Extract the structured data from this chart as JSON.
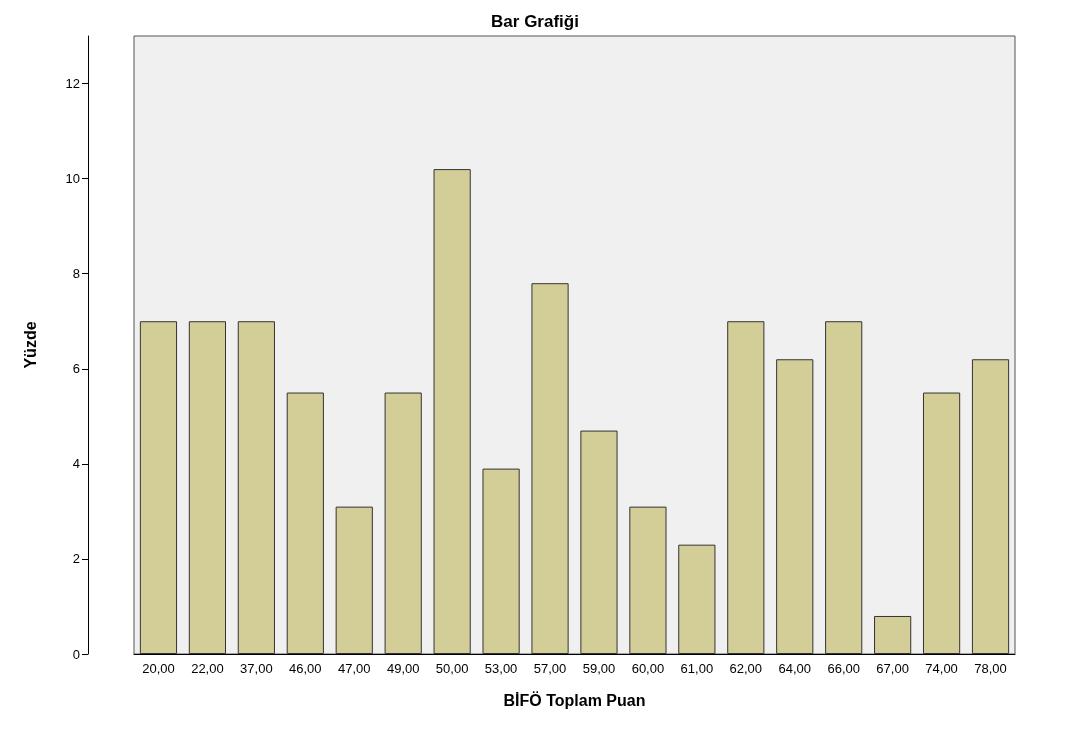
{
  "chart_data": {
    "type": "bar",
    "title": "Bar Grafiği",
    "xlabel": "BİFÖ Toplam Puan",
    "ylabel": "Yüzde",
    "categories": [
      "20,00",
      "22,00",
      "37,00",
      "46,00",
      "47,00",
      "49,00",
      "50,00",
      "53,00",
      "57,00",
      "59,00",
      "60,00",
      "61,00",
      "62,00",
      "64,00",
      "66,00",
      "67,00",
      "74,00",
      "78,00"
    ],
    "values": [
      7.0,
      7.0,
      7.0,
      5.5,
      3.1,
      5.5,
      10.2,
      3.9,
      7.8,
      4.7,
      3.1,
      2.3,
      7.0,
      6.2,
      7.0,
      0.8,
      5.5,
      6.2
    ],
    "color": "#d3ce97",
    "ylim": [
      0,
      13
    ],
    "yticks": [
      0,
      2,
      4,
      6,
      8,
      10,
      12
    ],
    "grid": false
  }
}
